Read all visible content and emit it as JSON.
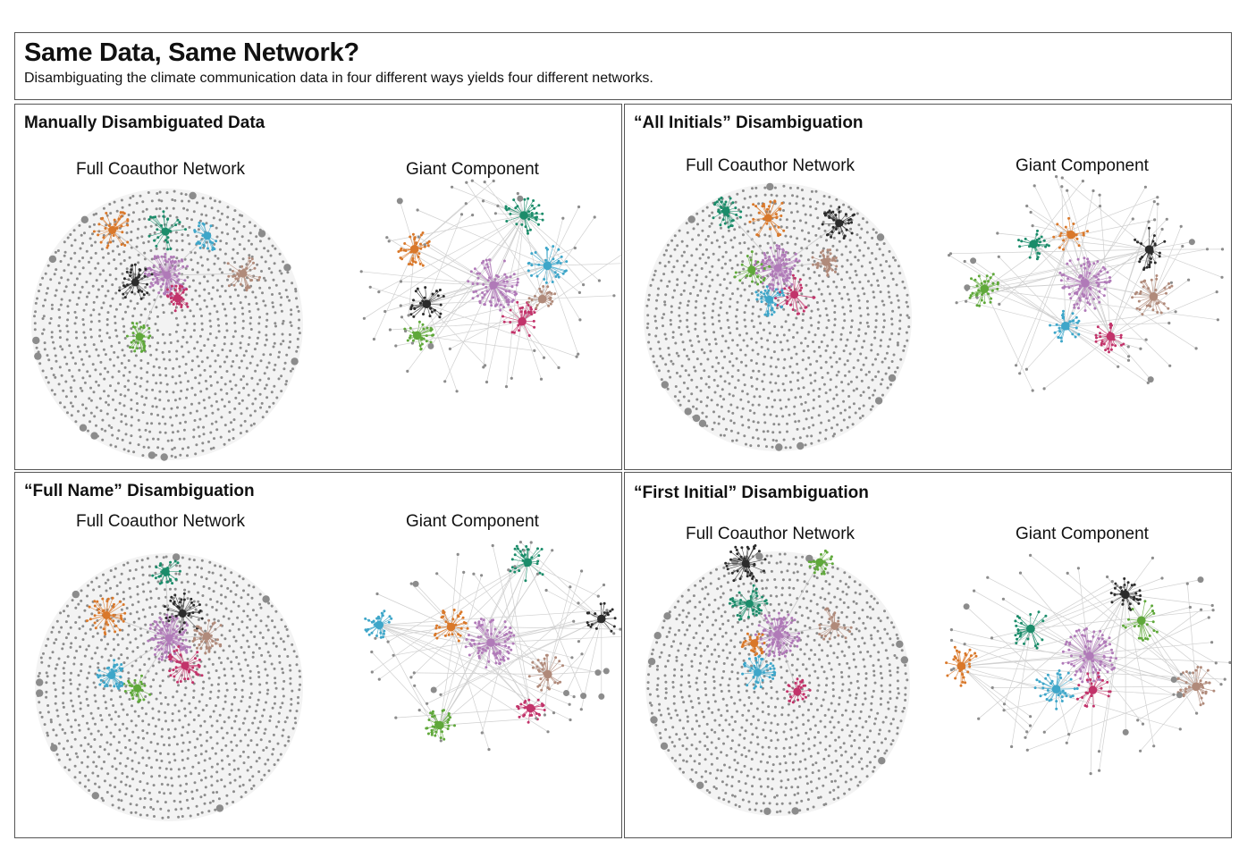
{
  "header": {
    "title": "Same Data, Same Network?",
    "subtitle": "Disambiguating the climate communication data in four different ways yields four different networks."
  },
  "panels": [
    {
      "title": "Manually Disambiguated Data",
      "left_label": "Full Coauthor Network",
      "right_label": "Giant Component"
    },
    {
      "title": "“All Initials” Disambiguation",
      "left_label": "Full Coauthor Network",
      "right_label": "Giant Component"
    },
    {
      "title": "“Full Name” Disambiguation",
      "left_label": "Full Coauthor Network",
      "right_label": "Giant Component"
    },
    {
      "title": "“First Initial” Disambiguation",
      "left_label": "Full Coauthor Network",
      "right_label": "Giant Component"
    }
  ],
  "colors": {
    "isolate_gray": "#8c8c8c",
    "edge_gray": "#c8c8c8",
    "purple": "#b07ab8",
    "crimson": "#c2336a",
    "green": "#5fa83a",
    "teal": "#1b8c6a",
    "blue": "#3ea6c9",
    "orange": "#d9782a",
    "black": "#2b2b2b",
    "brown": "#b08a7a"
  },
  "clusters": [
    [
      "purple",
      "crimson",
      "green",
      "black",
      "orange",
      "teal",
      "blue",
      "brown"
    ],
    [
      "purple",
      "crimson",
      "blue",
      "green",
      "teal",
      "orange",
      "black",
      "brown"
    ],
    [
      "purple",
      "crimson",
      "green",
      "blue",
      "orange",
      "teal",
      "black",
      "brown"
    ],
    [
      "purple",
      "crimson",
      "blue",
      "orange",
      "teal",
      "black",
      "green",
      "brown"
    ]
  ]
}
